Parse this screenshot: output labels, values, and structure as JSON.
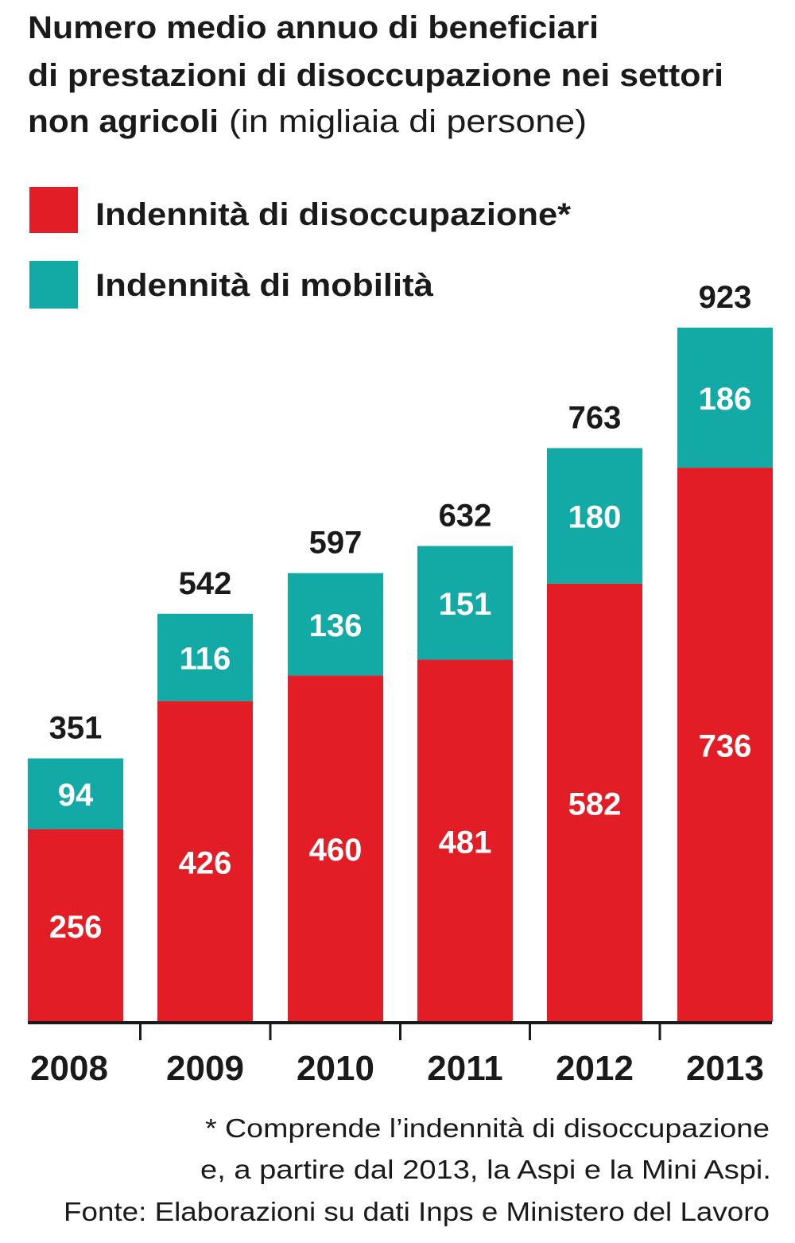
{
  "chart_data": {
    "type": "bar",
    "stacked": true,
    "title_bold_lines": [
      "Numero medio annuo di beneficiari",
      "di prestazioni di disoccupazione nei settori",
      "non agricoli"
    ],
    "title_suffix": "(in migliaia di persone)",
    "categories": [
      "2008",
      "2009",
      "2010",
      "2011",
      "2012",
      "2013"
    ],
    "series": [
      {
        "name": "Indennità di disoccupazione*",
        "color": "#e31d25",
        "values": [
          256,
          426,
          460,
          481,
          582,
          736
        ]
      },
      {
        "name": "Indennità di mobilità",
        "color": "#13a9a5",
        "values": [
          94,
          116,
          136,
          151,
          180,
          186
        ]
      }
    ],
    "totals": [
      351,
      542,
      597,
      632,
      763,
      923
    ],
    "ylim": [
      0,
      923
    ],
    "xlabel": "",
    "ylabel": "",
    "grid": false,
    "legend_position": "top-left",
    "footnotes": [
      "* Comprende l’indennità di disoccupazione",
      "e, a partire dal 2013, la Aspi e la Mini Aspi.",
      "Fonte: Elaborazioni su dati Inps e Ministero del Lavoro"
    ]
  }
}
